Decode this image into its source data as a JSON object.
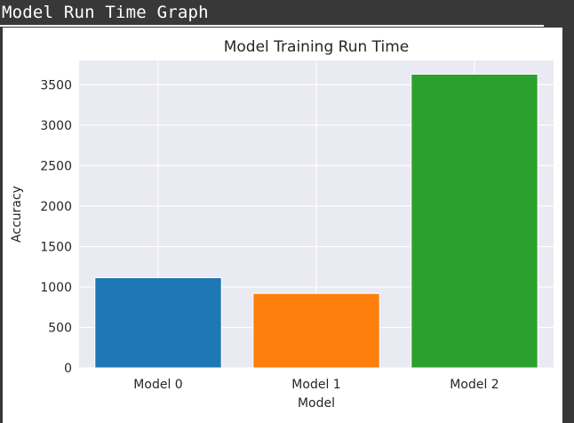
{
  "header": {
    "title": "Model Run Time Graph"
  },
  "chart_data": {
    "type": "bar",
    "title": "Model Training Run Time",
    "xlabel": "Model",
    "ylabel": "Accuracy",
    "categories": [
      "Model 0",
      "Model 1",
      "Model 2"
    ],
    "values": [
      1115,
      920,
      3630
    ],
    "colors": [
      "#1f77b4",
      "#ff7f0e",
      "#2ca02c"
    ],
    "ylim": [
      0,
      3800
    ],
    "yticks": [
      0,
      500,
      1000,
      1500,
      2000,
      2500,
      3000,
      3500
    ],
    "background": "#eaeaf2",
    "grid": true
  }
}
